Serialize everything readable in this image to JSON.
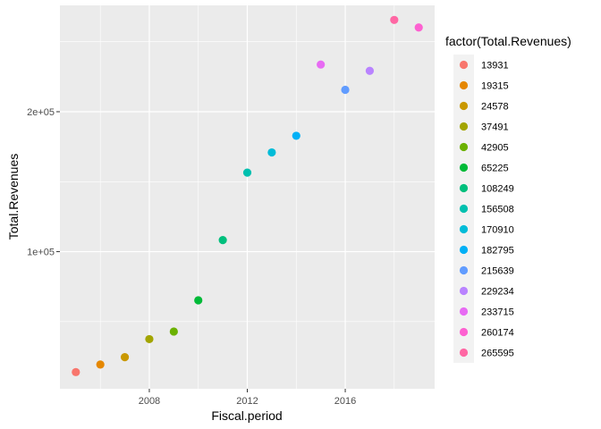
{
  "chart_data": {
    "type": "scatter",
    "xlabel": "Fiscal.period",
    "ylabel": "Total.Revenues",
    "xlim": [
      2004.35,
      2019.65
    ],
    "ylim": [
      2000,
      276000
    ],
    "x_ticks": [
      2008,
      2012,
      2016
    ],
    "x_tick_labels": [
      "2008",
      "2012",
      "2016"
    ],
    "y_ticks": [
      100000,
      200000
    ],
    "y_tick_labels": [
      "1e+05",
      "2e+05"
    ],
    "grid": true,
    "legend": {
      "title": "factor(Total.Revenues)",
      "placement": "right"
    },
    "points": [
      {
        "x": 2005,
        "y": 13931,
        "label": "13931",
        "color": "#F8766D"
      },
      {
        "x": 2006,
        "y": 19315,
        "label": "19315",
        "color": "#E58700"
      },
      {
        "x": 2007,
        "y": 24578,
        "label": "24578",
        "color": "#C99800"
      },
      {
        "x": 2008,
        "y": 37491,
        "label": "37491",
        "color": "#A3A500"
      },
      {
        "x": 2009,
        "y": 42905,
        "label": "42905",
        "color": "#6BB100"
      },
      {
        "x": 2010,
        "y": 65225,
        "label": "65225",
        "color": "#00BA38"
      },
      {
        "x": 2011,
        "y": 108249,
        "label": "108249",
        "color": "#00BF7D"
      },
      {
        "x": 2012,
        "y": 156508,
        "label": "156508",
        "color": "#00C0AF"
      },
      {
        "x": 2013,
        "y": 170910,
        "label": "170910",
        "color": "#00BCD8"
      },
      {
        "x": 2014,
        "y": 182795,
        "label": "182795",
        "color": "#00B0F6"
      },
      {
        "x": 2016,
        "y": 215639,
        "label": "215639",
        "color": "#619CFF"
      },
      {
        "x": 2017,
        "y": 229234,
        "label": "229234",
        "color": "#B983FF"
      },
      {
        "x": 2015,
        "y": 233715,
        "label": "233715",
        "color": "#E76BF3"
      },
      {
        "x": 2019,
        "y": 260174,
        "label": "260174",
        "color": "#FD61D1"
      },
      {
        "x": 2018,
        "y": 265595,
        "label": "265595",
        "color": "#FF67A4"
      }
    ]
  }
}
